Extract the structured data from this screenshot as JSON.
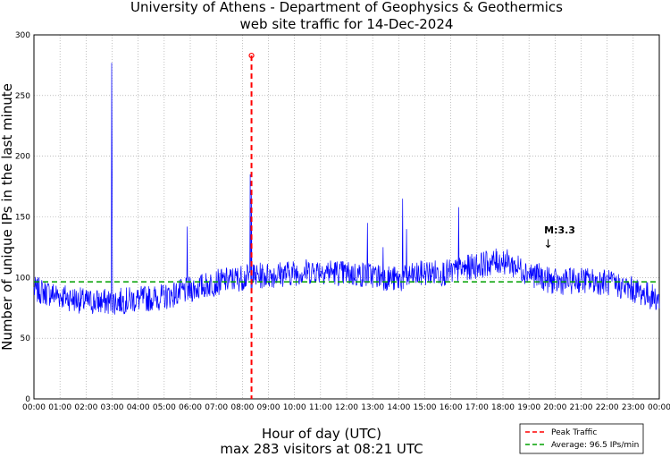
{
  "chart_data": {
    "type": "line",
    "title_line1": "University of Athens - Department of Geophysics & Geothermics",
    "title_line2": "web site traffic for 14-Dec-2024",
    "xlabel": "Hour of day (UTC)",
    "subtitle": "max 283 visitors at 08:21 UTC",
    "ylabel": "Number of unique IPs in the last minute",
    "xlim": [
      0,
      24
    ],
    "ylim": [
      0,
      300
    ],
    "y_ticks": [
      0,
      50,
      100,
      150,
      200,
      250,
      300
    ],
    "x_ticks": [
      "00:00",
      "01:00",
      "02:00",
      "03:00",
      "04:00",
      "05:00",
      "06:00",
      "07:00",
      "08:00",
      "09:00",
      "10:00",
      "11:00",
      "12:00",
      "13:00",
      "14:00",
      "15:00",
      "16:00",
      "17:00",
      "18:00",
      "19:00",
      "20:00",
      "21:00",
      "22:00",
      "23:00",
      "00:00"
    ],
    "grid": true,
    "baseline_points": [
      [
        0,
        90
      ],
      [
        1,
        85
      ],
      [
        2,
        80
      ],
      [
        3,
        80
      ],
      [
        4,
        82
      ],
      [
        5,
        84
      ],
      [
        6,
        90
      ],
      [
        7,
        96
      ],
      [
        8,
        100
      ],
      [
        9,
        102
      ],
      [
        10,
        104
      ],
      [
        11,
        106
      ],
      [
        12,
        103
      ],
      [
        13,
        102
      ],
      [
        14,
        98
      ],
      [
        15,
        104
      ],
      [
        16,
        104
      ],
      [
        17,
        110
      ],
      [
        18,
        114
      ],
      [
        19,
        104
      ],
      [
        20,
        96
      ],
      [
        21,
        98
      ],
      [
        22,
        96
      ],
      [
        23,
        90
      ],
      [
        24,
        82
      ]
    ],
    "spikes": [
      {
        "x": 2.98,
        "y": 277
      },
      {
        "x": 3.0,
        "y": 178
      },
      {
        "x": 5.88,
        "y": 142
      },
      {
        "x": 8.3,
        "y": 185
      },
      {
        "x": 8.35,
        "y": 170
      },
      {
        "x": 12.8,
        "y": 145
      },
      {
        "x": 14.15,
        "y": 165
      },
      {
        "x": 14.3,
        "y": 140
      },
      {
        "x": 16.3,
        "y": 158
      },
      {
        "x": 13.4,
        "y": 125
      }
    ],
    "peak": {
      "x": 8.35,
      "y": 283,
      "label": "Peak Traffic",
      "color": "#ff0000"
    },
    "average": {
      "y": 96.5,
      "label": "Average: 96.5 IPs/min",
      "color": "#00a000"
    },
    "series_color": "#0000ff",
    "annotation": {
      "text": "M:3.3",
      "x": 19.65,
      "y": 110
    }
  }
}
